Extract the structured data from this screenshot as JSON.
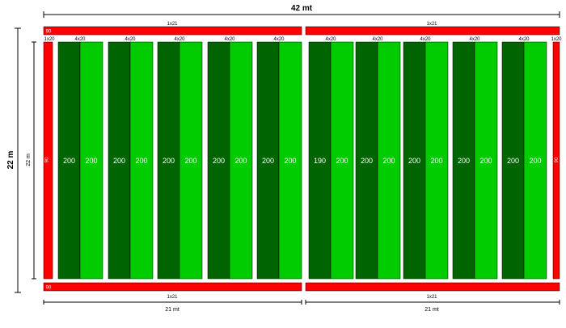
{
  "dimensions": {
    "total_width": "42 mt",
    "total_height": "22 m",
    "inner_height": "22 m",
    "bottom_left_width": "21 mt",
    "bottom_right_width": "21 mt"
  },
  "strip_labels": {
    "top_left": "1x21",
    "top_right": "1x21",
    "bottom_left": "1x21",
    "bottom_right": "1x21",
    "top_left_value": "90",
    "bottom_left_value": "90",
    "left_side_label": "1x20",
    "left_side_value": "90",
    "right_side_label": "1x20",
    "right_side_value": "90"
  },
  "plots": {
    "label": "4x20",
    "pairs": [
      [
        "200",
        "200"
      ],
      [
        "200",
        "200"
      ],
      [
        "200",
        "200"
      ],
      [
        "200",
        "200"
      ],
      [
        "200",
        "200"
      ],
      [
        "190",
        "200"
      ],
      [
        "200",
        "200"
      ],
      [
        "200",
        "200"
      ],
      [
        "200",
        "200"
      ],
      [
        "200",
        "200"
      ]
    ]
  },
  "colors": {
    "red": "#ff0000",
    "dark_green": "#006400",
    "light_green": "#00cc00"
  }
}
